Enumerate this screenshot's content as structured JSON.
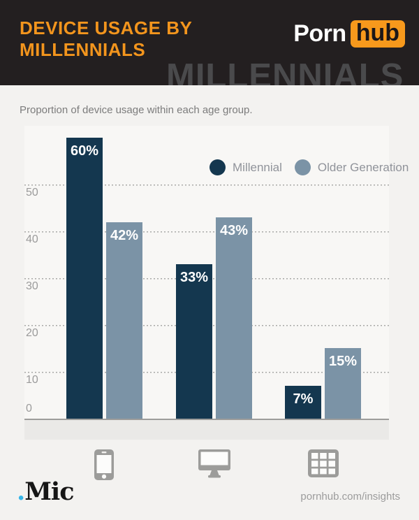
{
  "header": {
    "title_line1": "DEVICE USAGE BY",
    "title_line2": "MILLENNIALS",
    "logo_part1": "Porn",
    "logo_part2": "hub",
    "watermark": "MILLENNIALS"
  },
  "subtitle": "Proportion of device usage within each age group.",
  "chart_data": {
    "type": "bar",
    "title": "Device usage by Millennials",
    "subtitle": "Proportion of device usage within each age group.",
    "categories": [
      "Phone",
      "Desktop",
      "Tablet"
    ],
    "series": [
      {
        "name": "Millennial",
        "color": "#14374F",
        "values": [
          60,
          33,
          7
        ],
        "data_labels": [
          "60%",
          "33%",
          "7%"
        ]
      },
      {
        "name": "Older Generation",
        "color": "#7B93A6",
        "values": [
          42,
          43,
          15
        ],
        "data_labels": [
          "42%",
          "43%",
          "15%"
        ]
      }
    ],
    "ylabel": "",
    "xlabel": "",
    "ylim": [
      0,
      62
    ],
    "yticks": [
      0,
      10,
      20,
      30,
      40,
      50
    ],
    "grid": "horizontal-dotted",
    "legend_position": "top-right",
    "data_label_color": "#FFFFFF"
  },
  "category_icons": [
    "phone-icon",
    "desktop-icon",
    "tablet-grid-icon"
  ],
  "footer": {
    "left_logo_dot": ".",
    "left_logo_text": "Mic",
    "right_text": "pornhub.com/insights"
  },
  "colors": {
    "header_bg": "#231F20",
    "title_orange": "#F3951D",
    "logo_orange": "#F7991C",
    "watermark_gray": "#4A4A4C",
    "page_bg": "#F3F2F0",
    "axis_band": "#EAE9E7",
    "icon_gray": "#9C9C9A",
    "mic_dot_blue": "#35B5E8"
  }
}
